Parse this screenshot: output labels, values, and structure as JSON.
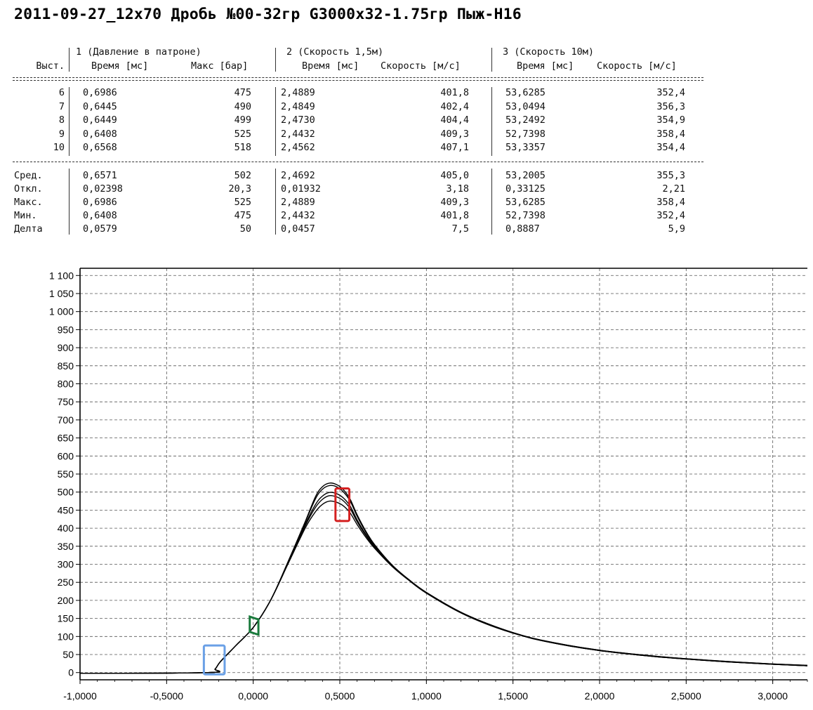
{
  "title": "2011-09-27_12x70 Дробь №00-32гр G3000х32-1.75гр Пыж-Н16",
  "table": {
    "group_headers": [
      "1 (Давление в патроне)",
      "2 (Скорость 1,5м)",
      "3 (Скорость 10м)"
    ],
    "column_headers": [
      "Выст.",
      "Время [мс]",
      "Макс [бар]",
      "Время [мс]",
      "Скорость [м/с]",
      "Время [мс]",
      "Скорость [м/с]"
    ],
    "rows": [
      [
        "6",
        "0,6986",
        "475",
        "2,4889",
        "401,8",
        "53,6285",
        "352,4"
      ],
      [
        "7",
        "0,6445",
        "490",
        "2,4849",
        "402,4",
        "53,0494",
        "356,3"
      ],
      [
        "8",
        "0,6449",
        "499",
        "2,4730",
        "404,4",
        "53,2492",
        "354,9"
      ],
      [
        "9",
        "0,6408",
        "525",
        "2,4432",
        "409,3",
        "52,7398",
        "358,4"
      ],
      [
        "10",
        "0,6568",
        "518",
        "2,4562",
        "407,1",
        "53,3357",
        "354,4"
      ]
    ],
    "stats": [
      [
        "Сред.",
        "0,6571",
        "502",
        "2,4692",
        "405,0",
        "53,2005",
        "355,3"
      ],
      [
        "Откл.",
        "0,02398",
        "20,3",
        "0,01932",
        "3,18",
        "0,33125",
        "2,21"
      ],
      [
        "Макс.",
        "0,6986",
        "525",
        "2,4889",
        "409,3",
        "53,6285",
        "358,4"
      ],
      [
        "Мин.",
        "0,6408",
        "475",
        "2,4432",
        "401,8",
        "52,7398",
        "352,4"
      ],
      [
        "Делта",
        "0,0579",
        "50",
        "0,0457",
        "7,5",
        "0,8887",
        "5,9"
      ]
    ]
  },
  "chart_data": {
    "type": "line",
    "title": "",
    "xlabel": "",
    "ylabel": "",
    "xlim": [
      -1.0,
      3.2
    ],
    "ylim": [
      -20,
      1120
    ],
    "x_ticks": [
      -1.0,
      -0.5,
      0.0,
      0.5,
      1.0,
      1.5,
      2.0,
      2.5,
      3.0
    ],
    "x_tick_labels": [
      "-1,0000",
      "-0,5000",
      "0,0000",
      "0,5000",
      "1,0000",
      "1,5000",
      "2,0000",
      "2,5000",
      "3,0000"
    ],
    "y_ticks": [
      0,
      50,
      100,
      150,
      200,
      250,
      300,
      350,
      400,
      450,
      500,
      550,
      600,
      650,
      700,
      750,
      800,
      850,
      900,
      950,
      1000,
      1050,
      1100
    ],
    "y_tick_labels": [
      "0",
      "50",
      "100",
      "150",
      "200",
      "250",
      "300",
      "350",
      "400",
      "450",
      "500",
      "550",
      "600",
      "650",
      "700",
      "750",
      "800",
      "850",
      "900",
      "950",
      "1 000",
      "1 050",
      "1 100"
    ],
    "grid": true,
    "line_color": "#000000",
    "series": [
      {
        "peak": 475,
        "x": [
          -1.0,
          -0.26,
          -0.22,
          -0.19,
          -0.1,
          0.0,
          0.1,
          0.2,
          0.3,
          0.36,
          0.4,
          0.44,
          0.48,
          0.52,
          0.56,
          0.6,
          0.65,
          0.7,
          0.8,
          0.9,
          1.0,
          1.2,
          1.4,
          1.6,
          1.8,
          2.0,
          2.2,
          2.4,
          2.6,
          2.8,
          3.0,
          3.2
        ],
        "y": [
          -2,
          0,
          10,
          30,
          75,
          125,
          200,
          300,
          400,
          446,
          466,
          475,
          472,
          462,
          442,
          410,
          375,
          345,
          295,
          255,
          220,
          165,
          125,
          96,
          76,
          61,
          50,
          41,
          34,
          28,
          23,
          19
        ]
      },
      {
        "peak": 490,
        "x": [
          -1.0,
          -0.26,
          -0.22,
          -0.19,
          -0.1,
          0.0,
          0.1,
          0.2,
          0.3,
          0.36,
          0.4,
          0.44,
          0.48,
          0.52,
          0.56,
          0.6,
          0.65,
          0.7,
          0.8,
          0.9,
          1.0,
          1.2,
          1.4,
          1.6,
          1.8,
          2.0,
          2.2,
          2.4,
          2.6,
          2.8,
          3.0,
          3.2
        ],
        "y": [
          -2,
          0,
          10,
          30,
          75,
          125,
          200,
          302,
          406,
          458,
          480,
          490,
          487,
          476,
          454,
          418,
          380,
          348,
          296,
          256,
          221,
          166,
          126,
          96,
          76,
          61,
          50,
          41,
          34,
          28,
          23,
          19
        ]
      },
      {
        "peak": 499,
        "x": [
          -1.0,
          -0.26,
          -0.22,
          -0.19,
          -0.1,
          0.0,
          0.1,
          0.2,
          0.3,
          0.36,
          0.4,
          0.44,
          0.48,
          0.52,
          0.56,
          0.6,
          0.65,
          0.7,
          0.8,
          0.9,
          1.0,
          1.2,
          1.4,
          1.6,
          1.8,
          2.0,
          2.2,
          2.4,
          2.6,
          2.8,
          3.0,
          3.2
        ],
        "y": [
          -2,
          0,
          10,
          30,
          75,
          125,
          200,
          303,
          410,
          466,
          489,
          499,
          496,
          484,
          461,
          423,
          383,
          350,
          297,
          256,
          221,
          166,
          126,
          96,
          76,
          61,
          50,
          41,
          34,
          28,
          23,
          19
        ]
      },
      {
        "peak": 525,
        "x": [
          -1.0,
          -0.26,
          -0.22,
          -0.19,
          -0.1,
          0.0,
          0.1,
          0.2,
          0.3,
          0.36,
          0.4,
          0.44,
          0.48,
          0.52,
          0.56,
          0.6,
          0.65,
          0.7,
          0.8,
          0.9,
          1.0,
          1.2,
          1.4,
          1.6,
          1.8,
          2.0,
          2.2,
          2.4,
          2.6,
          2.8,
          3.0,
          3.2
        ],
        "y": [
          -2,
          0,
          10,
          30,
          75,
          125,
          200,
          306,
          418,
          488,
          515,
          525,
          521,
          507,
          480,
          437,
          392,
          355,
          299,
          257,
          222,
          167,
          127,
          97,
          77,
          62,
          51,
          42,
          35,
          29,
          24,
          20
        ]
      },
      {
        "peak": 518,
        "x": [
          -1.0,
          -0.26,
          -0.22,
          -0.19,
          -0.1,
          0.0,
          0.1,
          0.2,
          0.3,
          0.36,
          0.4,
          0.44,
          0.48,
          0.52,
          0.56,
          0.6,
          0.65,
          0.7,
          0.8,
          0.9,
          1.0,
          1.2,
          1.4,
          1.6,
          1.8,
          2.0,
          2.2,
          2.4,
          2.6,
          2.8,
          3.0,
          3.2
        ],
        "y": [
          -2,
          0,
          10,
          30,
          75,
          125,
          200,
          305,
          416,
          482,
          508,
          518,
          515,
          501,
          475,
          433,
          389,
          353,
          298,
          257,
          222,
          167,
          127,
          97,
          77,
          62,
          51,
          42,
          35,
          29,
          24,
          20
        ]
      }
    ],
    "markers": [
      {
        "shape": "rect",
        "color": "#6aa0e6",
        "x": [
          -0.285,
          -0.165
        ],
        "y": [
          -5,
          75
        ]
      },
      {
        "shape": "tab",
        "color": "#1a7a3c",
        "x": [
          -0.02,
          0.03
        ],
        "y": [
          105,
          155
        ]
      },
      {
        "shape": "rect",
        "color": "#d42020",
        "x": [
          0.475,
          0.555
        ],
        "y": [
          420,
          510
        ]
      }
    ]
  }
}
